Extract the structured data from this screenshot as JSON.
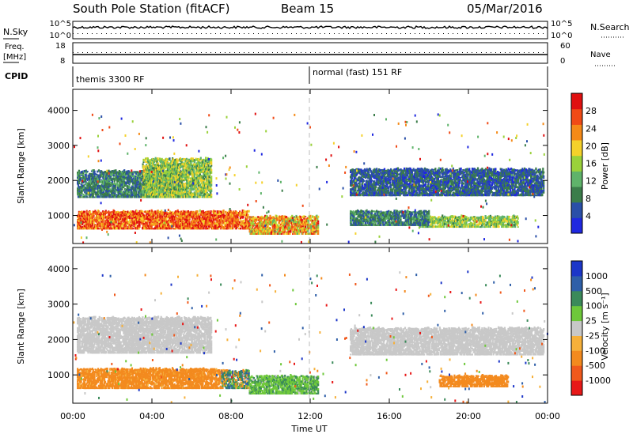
{
  "header": {
    "station": "South Pole Station (fitACF)",
    "beam": "Beam 15",
    "date": "05/Mar/2016"
  },
  "strip_panels": {
    "nsky_label": "N.Sky",
    "nsky_ticks": [
      "10^5",
      "10^0"
    ],
    "nsearch_label": "N.Search",
    "nsearch_ticks": [
      "10^5",
      "10^0"
    ],
    "freq_label": "Freq.",
    "freq_unit": "[MHz]",
    "freq_ticks": [
      "18",
      "8"
    ],
    "nave_label": "Nave",
    "nave_ticks": [
      "60",
      "0"
    ],
    "cpid_label": "CPID",
    "cpid_segments": [
      "themis 3300 RF",
      "normal (fast) 151 RF"
    ]
  },
  "colors": {
    "power_scale": [
      "#1f28e0",
      "#2a4fa8",
      "#3b7d4a",
      "#5fb36a",
      "#9ad13a",
      "#f5d12a",
      "#f58a18",
      "#f04a16",
      "#e01010"
    ],
    "velocity_scale": [
      "#e81818",
      "#f0591c",
      "#f38a1e",
      "#f6b03a",
      "#c8c8c8",
      "#6ec83a",
      "#3b8a5a",
      "#2f5fa8",
      "#1c36c8"
    ]
  },
  "chart_data": [
    {
      "type": "heatmap",
      "name": "power",
      "xlabel": "",
      "ylabel": "Slant Range [km]",
      "xlim": [
        0,
        24
      ],
      "ylim": [
        200,
        4600
      ],
      "yticks": [
        "1000",
        "2000",
        "3000",
        "4000"
      ],
      "colorbar_label": "Power [dB]",
      "colorbar_ticks": [
        "4",
        "8",
        "12",
        "16",
        "20",
        "24",
        "28"
      ],
      "colorbar_range": [
        0,
        30
      ],
      "regions": [
        {
          "t0": 0.2,
          "t1": 8.9,
          "r0": 600,
          "r1": 1100,
          "value": 24,
          "spread": 6
        },
        {
          "t0": 8.9,
          "t1": 12.4,
          "r0": 450,
          "r1": 950,
          "value": 20,
          "spread": 8
        },
        {
          "t0": 0.2,
          "t1": 5.5,
          "r0": 1500,
          "r1": 2250,
          "value": 8,
          "spread": 4
        },
        {
          "t0": 3.5,
          "t1": 7.0,
          "r0": 1500,
          "r1": 2600,
          "value": 14,
          "spread": 6
        },
        {
          "t0": 14.0,
          "t1": 23.8,
          "r0": 1550,
          "r1": 2300,
          "value": 6,
          "spread": 4
        },
        {
          "t0": 17.5,
          "t1": 22.5,
          "r0": 650,
          "r1": 950,
          "value": 14,
          "spread": 5
        },
        {
          "t0": 14.0,
          "t1": 18.0,
          "r0": 700,
          "r1": 1100,
          "value": 8,
          "spread": 4
        }
      ]
    },
    {
      "type": "heatmap",
      "name": "velocity",
      "xlabel": "Time UT",
      "ylabel": "Slant Range [km]",
      "xlim": [
        0,
        24
      ],
      "ylim": [
        200,
        4600
      ],
      "xticks": [
        "00:00",
        "04:00",
        "08:00",
        "12:00",
        "16:00",
        "20:00",
        "00:00"
      ],
      "yticks": [
        "1000",
        "2000",
        "3000",
        "4000"
      ],
      "colorbar_label": "Velocity [m s^-1]",
      "colorbar_ticks": [
        "1000",
        "500",
        "100",
        "25",
        "-25",
        "-100",
        "-500",
        "-1000"
      ],
      "regions": [
        {
          "t0": 0.2,
          "t1": 7.5,
          "r0": 600,
          "r1": 1150,
          "value": -150,
          "spread": 60
        },
        {
          "t0": 7.5,
          "t1": 8.9,
          "r0": 600,
          "r1": 1100,
          "value": 200,
          "spread": 500
        },
        {
          "t0": 8.9,
          "t1": 12.4,
          "r0": 450,
          "r1": 950,
          "value": 80,
          "spread": 60
        },
        {
          "t0": 0.2,
          "t1": 7.0,
          "r0": 1600,
          "r1": 2600,
          "value": 0,
          "spread": 20
        },
        {
          "t0": 14.0,
          "t1": 23.8,
          "r0": 1550,
          "r1": 2300,
          "value": 0,
          "spread": 20
        },
        {
          "t0": 18.5,
          "t1": 22.0,
          "r0": 650,
          "r1": 950,
          "value": -200,
          "spread": 60
        }
      ]
    }
  ]
}
